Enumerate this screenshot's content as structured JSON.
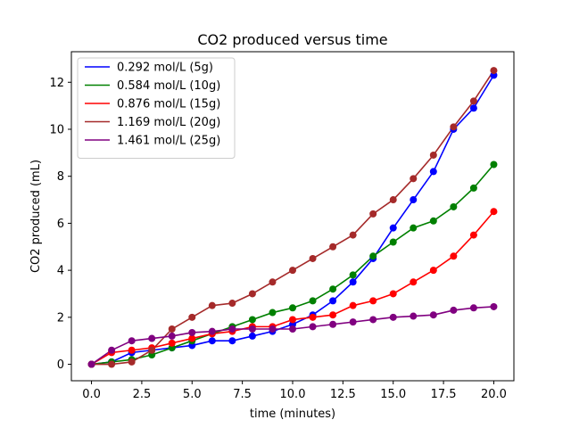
{
  "chart_data": {
    "type": "line",
    "title": "CO2 produced versus time",
    "xlabel": "time (minutes)",
    "ylabel": "CO2 produced (mL)",
    "xlim": [
      -1.0,
      21.0
    ],
    "ylim": [
      -0.7,
      13.3
    ],
    "xticks": [
      0.0,
      2.5,
      5.0,
      7.5,
      10.0,
      12.5,
      15.0,
      17.5,
      20.0
    ],
    "xtick_labels": [
      "0.0",
      "2.5",
      "5.0",
      "7.5",
      "10.0",
      "12.5",
      "15.0",
      "17.5",
      "20.0"
    ],
    "yticks": [
      0,
      2,
      4,
      6,
      8,
      10,
      12
    ],
    "ytick_labels": [
      "0",
      "2",
      "4",
      "6",
      "8",
      "10",
      "12"
    ],
    "grid": false,
    "legend_position": "top-left",
    "markers": true,
    "x": [
      0,
      1,
      2,
      3,
      4,
      5,
      6,
      7,
      8,
      9,
      10,
      11,
      12,
      13,
      14,
      15,
      16,
      17,
      18,
      19,
      20
    ],
    "series": [
      {
        "name": "0.292 mol/L (5g)",
        "color": "#0000ff",
        "values": [
          0.0,
          0.1,
          0.5,
          0.6,
          0.7,
          0.8,
          1.0,
          1.0,
          1.2,
          1.4,
          1.7,
          2.1,
          2.7,
          3.5,
          4.5,
          5.8,
          7.0,
          8.2,
          10.0,
          10.9,
          12.3
        ]
      },
      {
        "name": "0.584 mol/L (10g)",
        "color": "#008000",
        "values": [
          0.0,
          0.1,
          0.2,
          0.4,
          0.7,
          1.0,
          1.3,
          1.6,
          1.9,
          2.2,
          2.4,
          2.7,
          3.2,
          3.8,
          4.6,
          5.2,
          5.8,
          6.1,
          6.7,
          7.5,
          8.5
        ]
      },
      {
        "name": "0.876 mol/L (15g)",
        "color": "#ff0000",
        "values": [
          0.0,
          0.5,
          0.6,
          0.7,
          0.9,
          1.1,
          1.3,
          1.4,
          1.6,
          1.6,
          1.9,
          2.0,
          2.1,
          2.5,
          2.7,
          3.0,
          3.5,
          4.0,
          4.6,
          5.5,
          6.5
        ]
      },
      {
        "name": "1.169 mol/L (20g)",
        "color": "#a52a2a",
        "values": [
          0.0,
          0.0,
          0.1,
          0.6,
          1.5,
          2.0,
          2.5,
          2.6,
          3.0,
          3.5,
          4.0,
          4.5,
          5.0,
          5.5,
          6.4,
          7.0,
          7.9,
          8.9,
          10.1,
          11.2,
          12.5
        ]
      },
      {
        "name": "1.461 mol/L (25g)",
        "color": "#800080",
        "values": [
          0.0,
          0.6,
          1.0,
          1.1,
          1.2,
          1.35,
          1.4,
          1.5,
          1.5,
          1.5,
          1.5,
          1.6,
          1.7,
          1.8,
          1.9,
          2.0,
          2.05,
          2.1,
          2.3,
          2.4,
          2.45
        ]
      }
    ]
  }
}
